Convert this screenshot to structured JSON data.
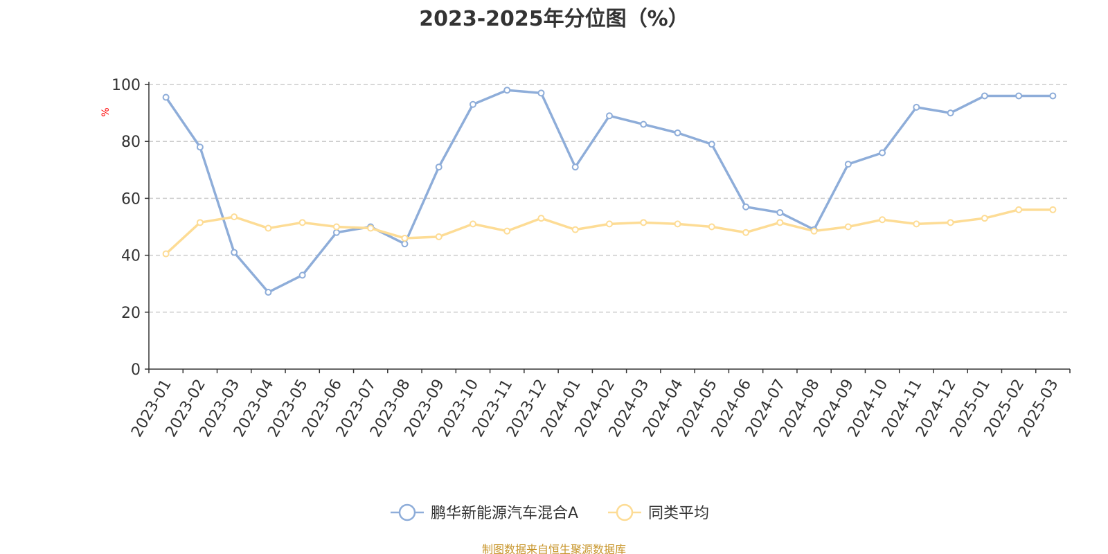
{
  "chart_data": {
    "type": "line",
    "title": "2023-2025年分位图（%）",
    "ylabel": "%",
    "xlabel": "",
    "ylim": [
      0,
      100
    ],
    "yticks": [
      0,
      20,
      40,
      60,
      80,
      100
    ],
    "grid": true,
    "legend_position": "bottom-center",
    "categories": [
      "2023-01",
      "2023-02",
      "2023-03",
      "2023-04",
      "2023-05",
      "2023-06",
      "2023-07",
      "2023-08",
      "2023-09",
      "2023-10",
      "2023-11",
      "2023-12",
      "2024-01",
      "2024-02",
      "2024-03",
      "2024-04",
      "2024-05",
      "2024-06",
      "2024-07",
      "2024-08",
      "2024-09",
      "2024-10",
      "2024-11",
      "2024-12",
      "2025-01",
      "2025-02",
      "2025-03"
    ],
    "series": [
      {
        "name": "鹏华新能源汽车混合A",
        "color": "#8eadd9",
        "values": [
          95.5,
          78,
          41,
          27,
          33,
          48,
          50,
          44,
          71,
          93,
          98,
          97,
          71,
          89,
          86,
          83,
          79,
          57,
          55,
          49,
          72,
          76,
          92,
          90,
          96,
          96,
          96
        ]
      },
      {
        "name": "同类平均",
        "color": "#fddc95",
        "values": [
          40.5,
          51.5,
          53.5,
          49.5,
          51.5,
          50,
          49.5,
          46,
          46.5,
          51,
          48.5,
          53,
          49,
          51,
          51.5,
          51,
          50,
          48,
          51.5,
          48.5,
          50,
          52.5,
          51,
          51.5,
          53,
          56,
          56
        ]
      }
    ]
  },
  "source_note": "制图数据来自恒生聚源数据库"
}
